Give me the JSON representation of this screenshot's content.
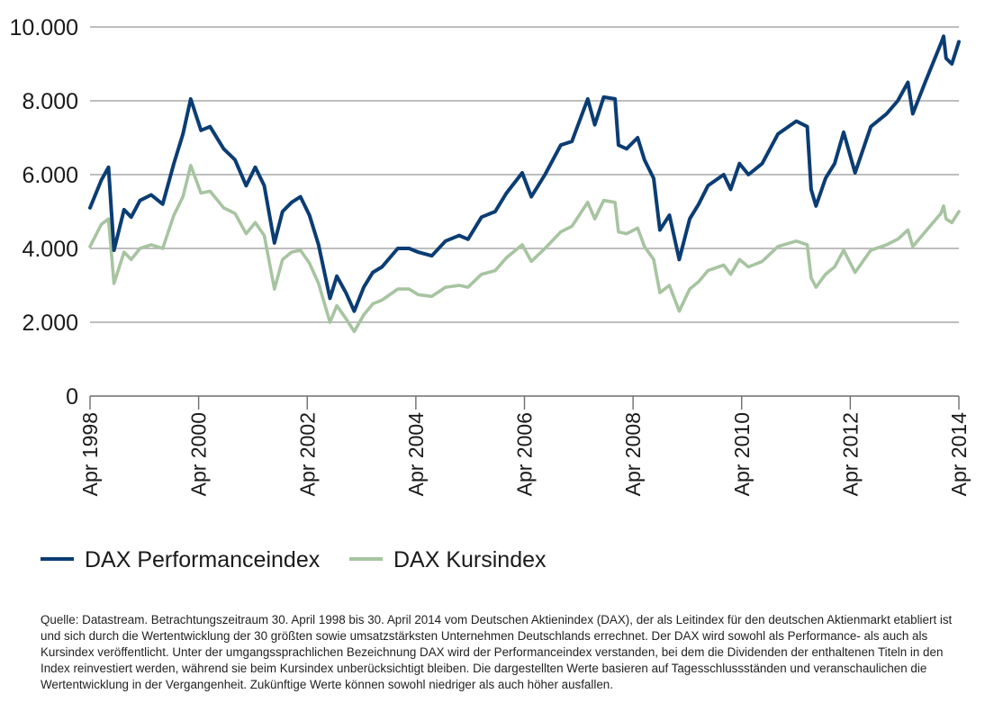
{
  "chart_data": {
    "type": "line",
    "title": "",
    "xlabel": "",
    "ylabel": "",
    "x_ticks": [
      "Apr 1998",
      "Apr 2000",
      "Apr 2002",
      "Apr 2004",
      "Apr 2006",
      "Apr 2008",
      "Apr 2010",
      "Apr 2012",
      "Apr 2014"
    ],
    "y_ticks": [
      "0",
      "2.000",
      "4.000",
      "6.000",
      "8.000",
      "10.000"
    ],
    "ylim": [
      0,
      10000
    ],
    "xlim": [
      "1998-04-30",
      "2014-04-30"
    ],
    "grid": "horizontal",
    "legend_position": "bottom-left",
    "series": [
      {
        "name": "DAX Performanceindex",
        "color": "#0b3d73",
        "points": [
          [
            "1998-04-30",
            5100
          ],
          [
            "1998-07-15",
            5850
          ],
          [
            "1998-09-01",
            6200
          ],
          [
            "1998-10-08",
            3950
          ],
          [
            "1998-12-15",
            5050
          ],
          [
            "1999-02-01",
            4850
          ],
          [
            "1999-04-01",
            5300
          ],
          [
            "1999-06-15",
            5450
          ],
          [
            "1999-09-01",
            5200
          ],
          [
            "1999-11-15",
            6300
          ],
          [
            "2000-01-15",
            7100
          ],
          [
            "2000-03-07",
            8050
          ],
          [
            "2000-05-15",
            7200
          ],
          [
            "2000-07-15",
            7300
          ],
          [
            "2000-10-15",
            6700
          ],
          [
            "2000-12-30",
            6400
          ],
          [
            "2001-03-15",
            5700
          ],
          [
            "2001-05-15",
            6200
          ],
          [
            "2001-07-15",
            5700
          ],
          [
            "2001-09-21",
            4150
          ],
          [
            "2001-11-15",
            5000
          ],
          [
            "2002-01-15",
            5250
          ],
          [
            "2002-03-15",
            5400
          ],
          [
            "2002-05-15",
            4900
          ],
          [
            "2002-07-15",
            4100
          ],
          [
            "2002-09-30",
            2650
          ],
          [
            "2002-11-15",
            3250
          ],
          [
            "2003-01-15",
            2800
          ],
          [
            "2003-03-12",
            2300
          ],
          [
            "2003-05-15",
            2950
          ],
          [
            "2003-07-15",
            3350
          ],
          [
            "2003-09-15",
            3500
          ],
          [
            "2003-12-30",
            4000
          ],
          [
            "2004-03-15",
            4000
          ],
          [
            "2004-05-15",
            3900
          ],
          [
            "2004-08-15",
            3800
          ],
          [
            "2004-11-15",
            4200
          ],
          [
            "2005-02-15",
            4350
          ],
          [
            "2005-04-15",
            4250
          ],
          [
            "2005-07-15",
            4850
          ],
          [
            "2005-10-15",
            5000
          ],
          [
            "2005-12-30",
            5500
          ],
          [
            "2006-04-15",
            6050
          ],
          [
            "2006-06-15",
            5400
          ],
          [
            "2006-09-15",
            6000
          ],
          [
            "2006-12-30",
            6800
          ],
          [
            "2007-03-15",
            6900
          ],
          [
            "2007-06-30",
            8050
          ],
          [
            "2007-08-16",
            7350
          ],
          [
            "2007-10-15",
            8100
          ],
          [
            "2007-12-30",
            8050
          ],
          [
            "2008-01-22",
            6800
          ],
          [
            "2008-03-17",
            6700
          ],
          [
            "2008-05-30",
            7000
          ],
          [
            "2008-07-15",
            6400
          ],
          [
            "2008-09-15",
            5900
          ],
          [
            "2008-10-27",
            4500
          ],
          [
            "2008-12-30",
            4900
          ],
          [
            "2009-03-06",
            3700
          ],
          [
            "2009-05-15",
            4800
          ],
          [
            "2009-07-15",
            5200
          ],
          [
            "2009-09-15",
            5700
          ],
          [
            "2009-12-30",
            6000
          ],
          [
            "2010-02-15",
            5600
          ],
          [
            "2010-04-15",
            6300
          ],
          [
            "2010-06-15",
            6000
          ],
          [
            "2010-09-15",
            6300
          ],
          [
            "2010-12-30",
            7100
          ],
          [
            "2011-05-02",
            7450
          ],
          [
            "2011-07-15",
            7300
          ],
          [
            "2011-08-10",
            5600
          ],
          [
            "2011-09-12",
            5150
          ],
          [
            "2011-11-15",
            5900
          ],
          [
            "2012-01-15",
            6300
          ],
          [
            "2012-03-16",
            7150
          ],
          [
            "2012-06-01",
            6050
          ],
          [
            "2012-09-15",
            7300
          ],
          [
            "2012-12-30",
            7650
          ],
          [
            "2013-03-15",
            8000
          ],
          [
            "2013-05-22",
            8500
          ],
          [
            "2013-06-24",
            7650
          ],
          [
            "2013-09-15",
            8500
          ],
          [
            "2013-12-30",
            9550
          ],
          [
            "2014-01-17",
            9750
          ],
          [
            "2014-02-03",
            9150
          ],
          [
            "2014-03-14",
            9000
          ],
          [
            "2014-04-30",
            9600
          ]
        ]
      },
      {
        "name": "DAX Kursindex",
        "color": "#a7c4a1",
        "points": [
          [
            "1998-04-30",
            4050
          ],
          [
            "1998-07-15",
            4650
          ],
          [
            "1998-09-01",
            4800
          ],
          [
            "1998-10-08",
            3050
          ],
          [
            "1998-12-15",
            3900
          ],
          [
            "1999-02-01",
            3700
          ],
          [
            "1999-04-01",
            4000
          ],
          [
            "1999-06-15",
            4100
          ],
          [
            "1999-09-01",
            4000
          ],
          [
            "1999-11-15",
            4900
          ],
          [
            "2000-01-15",
            5400
          ],
          [
            "2000-03-07",
            6250
          ],
          [
            "2000-05-15",
            5500
          ],
          [
            "2000-07-15",
            5550
          ],
          [
            "2000-10-15",
            5100
          ],
          [
            "2000-12-30",
            4950
          ],
          [
            "2001-03-15",
            4400
          ],
          [
            "2001-05-15",
            4700
          ],
          [
            "2001-07-15",
            4350
          ],
          [
            "2001-09-21",
            2900
          ],
          [
            "2001-11-15",
            3700
          ],
          [
            "2002-01-15",
            3900
          ],
          [
            "2002-03-15",
            3950
          ],
          [
            "2002-05-15",
            3600
          ],
          [
            "2002-07-15",
            3050
          ],
          [
            "2002-09-30",
            2000
          ],
          [
            "2002-11-15",
            2450
          ],
          [
            "2003-01-15",
            2100
          ],
          [
            "2003-03-12",
            1750
          ],
          [
            "2003-05-15",
            2200
          ],
          [
            "2003-07-15",
            2500
          ],
          [
            "2003-09-15",
            2600
          ],
          [
            "2003-12-30",
            2900
          ],
          [
            "2004-03-15",
            2900
          ],
          [
            "2004-05-15",
            2750
          ],
          [
            "2004-08-15",
            2700
          ],
          [
            "2004-11-15",
            2950
          ],
          [
            "2005-02-15",
            3000
          ],
          [
            "2005-04-15",
            2950
          ],
          [
            "2005-07-15",
            3300
          ],
          [
            "2005-10-15",
            3400
          ],
          [
            "2005-12-30",
            3750
          ],
          [
            "2006-04-15",
            4100
          ],
          [
            "2006-06-15",
            3650
          ],
          [
            "2006-09-15",
            4000
          ],
          [
            "2006-12-30",
            4450
          ],
          [
            "2007-03-15",
            4600
          ],
          [
            "2007-06-30",
            5250
          ],
          [
            "2007-08-16",
            4800
          ],
          [
            "2007-10-15",
            5300
          ],
          [
            "2007-12-30",
            5250
          ],
          [
            "2008-01-22",
            4450
          ],
          [
            "2008-03-17",
            4400
          ],
          [
            "2008-05-30",
            4550
          ],
          [
            "2008-07-15",
            4050
          ],
          [
            "2008-09-15",
            3700
          ],
          [
            "2008-10-27",
            2800
          ],
          [
            "2008-12-30",
            3000
          ],
          [
            "2009-03-06",
            2300
          ],
          [
            "2009-05-15",
            2900
          ],
          [
            "2009-07-15",
            3100
          ],
          [
            "2009-09-15",
            3400
          ],
          [
            "2009-12-30",
            3550
          ],
          [
            "2010-02-15",
            3300
          ],
          [
            "2010-04-15",
            3700
          ],
          [
            "2010-06-15",
            3500
          ],
          [
            "2010-09-15",
            3650
          ],
          [
            "2010-12-30",
            4050
          ],
          [
            "2011-05-02",
            4200
          ],
          [
            "2011-07-15",
            4100
          ],
          [
            "2011-08-10",
            3200
          ],
          [
            "2011-09-12",
            2950
          ],
          [
            "2011-11-15",
            3300
          ],
          [
            "2012-01-15",
            3500
          ],
          [
            "2012-03-16",
            3950
          ],
          [
            "2012-06-01",
            3350
          ],
          [
            "2012-09-15",
            3950
          ],
          [
            "2012-12-30",
            4100
          ],
          [
            "2013-03-15",
            4250
          ],
          [
            "2013-05-22",
            4500
          ],
          [
            "2013-06-24",
            4050
          ],
          [
            "2013-09-15",
            4450
          ],
          [
            "2013-12-30",
            4950
          ],
          [
            "2014-01-17",
            5150
          ],
          [
            "2014-02-03",
            4800
          ],
          [
            "2014-03-14",
            4700
          ],
          [
            "2014-04-30",
            5000
          ]
        ]
      }
    ]
  },
  "legend": {
    "performance": "DAX Performanceindex",
    "kurs": "DAX Kursindex"
  },
  "footnote": "Quelle: Datastream. Betrachtungszeitraum 30. April 1998 bis 30. April 2014 vom Deutschen Aktienindex (DAX), der als Leitindex für den deutschen Aktienmarkt etabliert ist und sich durch die Wertentwicklung der 30 größten sowie umsatzstärksten Unternehmen Deutschlands errechnet. Der DAX wird sowohl als Performance- als auch als Kursindex veröffentlicht. Unter der umgangssprachlichen Bezeichnung DAX wird der Performanceindex verstanden, bei dem die Dividenden der enthaltenen Titeln in den Index reinvestiert werden, während sie beim Kursindex unberücksichtigt bleiben. Die dargestellten Werte basieren auf Tagesschlussständen und veranschaulichen die Wertentwicklung in der Vergangenheit. Zukünftige Werte können sowohl niedriger als auch höher ausfallen."
}
